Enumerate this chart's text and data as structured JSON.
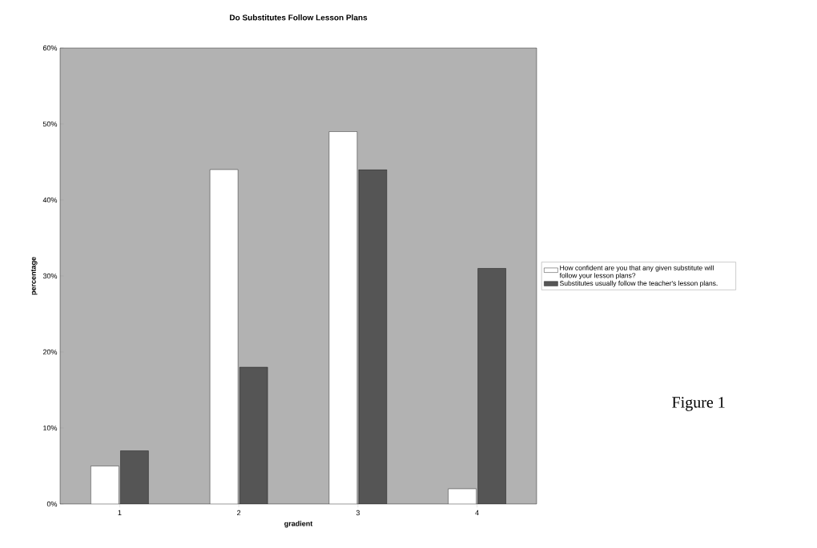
{
  "chart_data": {
    "type": "bar",
    "title": "Do Substitutes Follow Lesson Plans",
    "xlabel": "gradient",
    "ylabel": "percentage",
    "categories": [
      "1",
      "2",
      "3",
      "4"
    ],
    "series": [
      {
        "name": "How confident are you that any given substitute will follow your lesson plans?",
        "color": "#ffffff",
        "values": [
          5,
          44,
          49,
          2
        ]
      },
      {
        "name": "Substitutes usually follow the teacher's lesson plans.",
        "color": "#555555",
        "values": [
          7,
          18,
          44,
          31
        ]
      }
    ],
    "ylim": [
      0,
      60
    ],
    "yticks": [
      {
        "value": 0,
        "label": "0%"
      },
      {
        "value": 10,
        "label": "10%"
      },
      {
        "value": 20,
        "label": "20%"
      },
      {
        "value": 30,
        "label": "30%"
      },
      {
        "value": 40,
        "label": "40%"
      },
      {
        "value": 50,
        "label": "50%"
      },
      {
        "value": 60,
        "label": "60%"
      }
    ],
    "legend": "right",
    "grid": false,
    "annotations": [
      "Figure 1"
    ]
  }
}
